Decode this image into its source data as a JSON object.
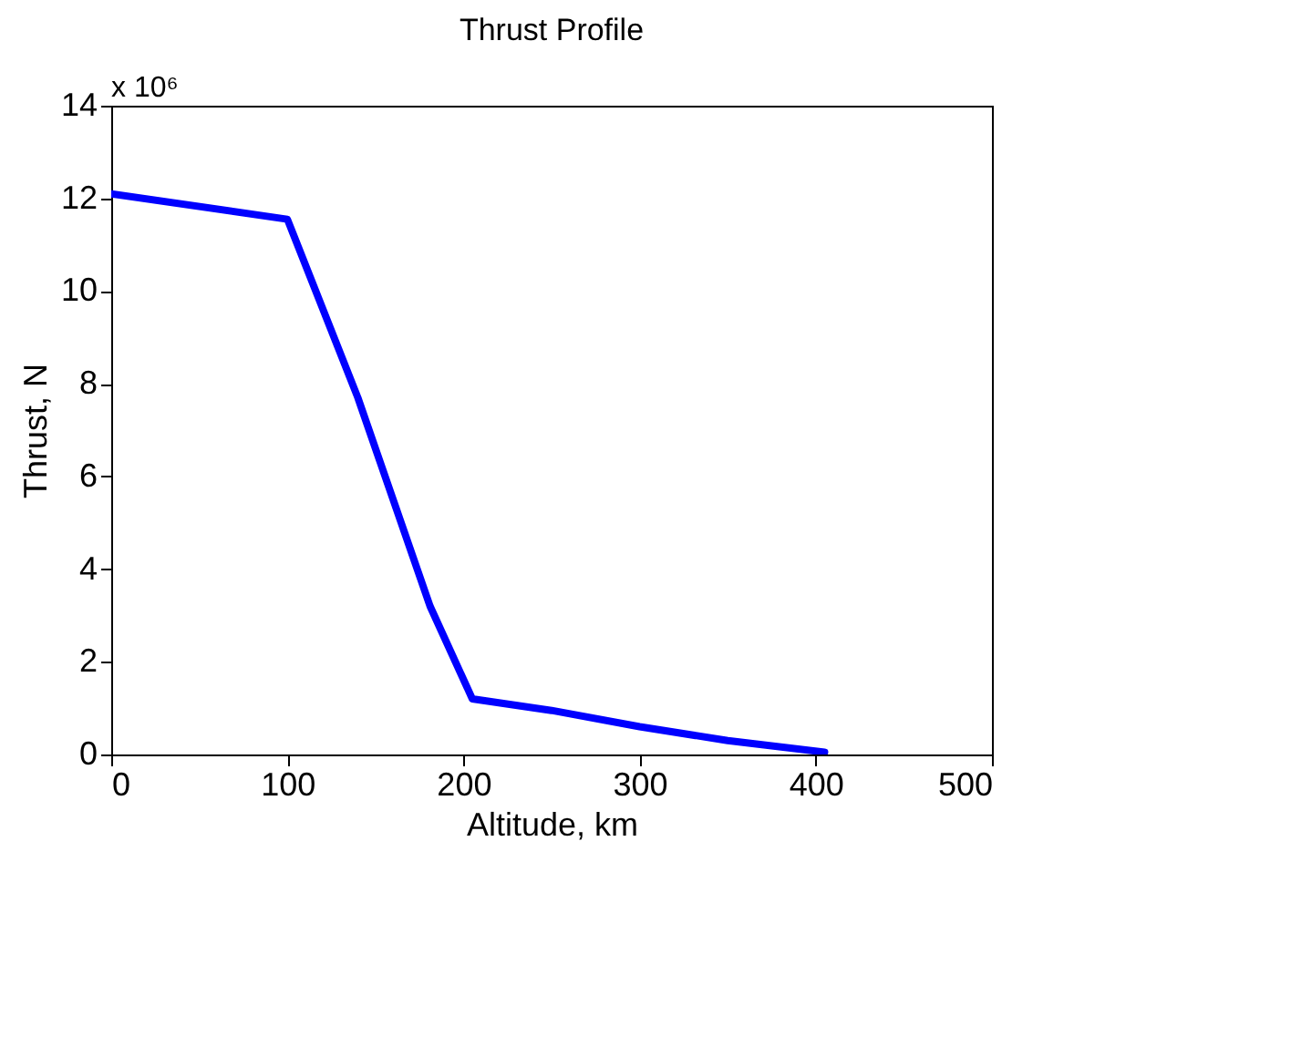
{
  "chart_data": {
    "type": "line",
    "title": "Thrust Profile",
    "xlabel": "Altitude, km",
    "ylabel": "Thrust, N",
    "x": [
      0,
      100,
      140,
      181,
      205,
      250,
      300,
      350,
      405
    ],
    "series": [
      {
        "color": "#0000ff",
        "values": [
          12.1,
          11.55,
          7.7,
          3.2,
          1.2,
          0.95,
          0.6,
          0.3,
          0.05
        ]
      }
    ],
    "xlim": [
      0,
      500
    ],
    "xticks": [
      0,
      100,
      200,
      300,
      400,
      500
    ],
    "ylim": [
      0,
      14
    ],
    "yticks": [
      0,
      2,
      4,
      6,
      8,
      10,
      12,
      14
    ],
    "annotations": [
      "x 10⁶"
    ],
    "grid": false,
    "marker": "none",
    "line_style": "solid"
  }
}
